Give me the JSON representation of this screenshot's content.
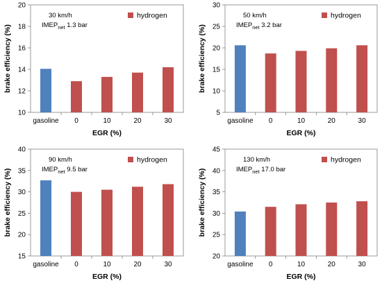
{
  "chart_data": [
    {
      "type": "bar",
      "categories": [
        "gasoline",
        "0",
        "10",
        "20",
        "30"
      ],
      "values": [
        14.05,
        12.9,
        13.3,
        13.7,
        14.2
      ],
      "xlabel": "EGR (%)",
      "ylabel": "brake efficiency (%)",
      "ylim": [
        10,
        20
      ],
      "yticks": [
        10,
        12,
        14,
        16,
        18,
        20
      ],
      "annotation": {
        "speed": "30 km/h",
        "imep_prefix": "IMEP",
        "imep_sub": "net",
        "imep_value": " 1.3 bar"
      },
      "legend": {
        "label": "hydrogen",
        "position": "top-right"
      },
      "colors": {
        "gasoline": "#4f81bd",
        "hydrogen": "#c0504d"
      },
      "grid": false
    },
    {
      "type": "bar",
      "categories": [
        "gasoline",
        "0",
        "10",
        "20",
        "30"
      ],
      "values": [
        20.6,
        18.7,
        19.3,
        19.9,
        20.6
      ],
      "xlabel": "EGR (%)",
      "ylabel": "brake efficiency (%)",
      "ylim": [
        5,
        30
      ],
      "yticks": [
        5,
        10,
        15,
        20,
        25,
        30
      ],
      "annotation": {
        "speed": "50 km/h",
        "imep_prefix": "IMEP",
        "imep_sub": "net",
        "imep_value": " 3.2 bar"
      },
      "legend": {
        "label": "hydrogen",
        "position": "top-right"
      },
      "colors": {
        "gasoline": "#4f81bd",
        "hydrogen": "#c0504d"
      },
      "grid": false
    },
    {
      "type": "bar",
      "categories": [
        "gasoline",
        "0",
        "10",
        "20",
        "30"
      ],
      "values": [
        32.7,
        30.0,
        30.5,
        31.2,
        31.8
      ],
      "xlabel": "EGR (%)",
      "ylabel": "brake efficiency (%)",
      "ylim": [
        15,
        40
      ],
      "yticks": [
        15,
        20,
        25,
        30,
        35,
        40
      ],
      "annotation": {
        "speed": "90 km/h",
        "imep_prefix": "IMEP",
        "imep_sub": "net",
        "imep_value": " 9.5 bar"
      },
      "legend": {
        "label": "hydrogen",
        "position": "top-right"
      },
      "colors": {
        "gasoline": "#4f81bd",
        "hydrogen": "#c0504d"
      },
      "grid": false
    },
    {
      "type": "bar",
      "categories": [
        "gasoline",
        "0",
        "10",
        "20",
        "30"
      ],
      "values": [
        30.4,
        31.5,
        32.1,
        32.5,
        32.8
      ],
      "xlabel": "EGR (%)",
      "ylabel": "brake efficiency (%)",
      "ylim": [
        20,
        45
      ],
      "yticks": [
        20,
        25,
        30,
        35,
        40,
        45
      ],
      "annotation": {
        "speed": "130 km/h",
        "imep_prefix": "IMEP",
        "imep_sub": "net",
        "imep_value": " 17.0 bar"
      },
      "legend": {
        "label": "hydrogen",
        "position": "top-right"
      },
      "colors": {
        "gasoline": "#4f81bd",
        "hydrogen": "#c0504d"
      },
      "grid": false
    }
  ]
}
